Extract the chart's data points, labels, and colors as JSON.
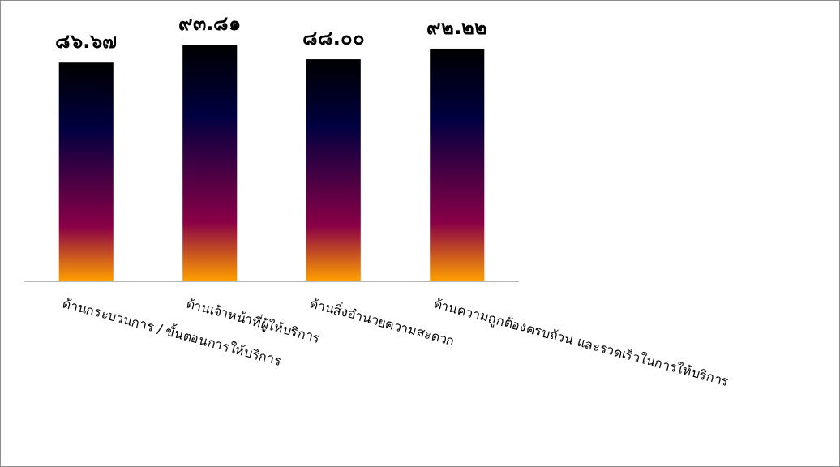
{
  "chart_data": {
    "type": "bar",
    "categories": [
      "ด้านกระบวนการ / ขั้นตอนการให้บริการ",
      "ด้านเจ้าหน้าที่ผู้ให้บริการ",
      "ด้านสิ่งอำนวยความสะดวก",
      "ด้านความถูกต้องครบถ้วน และรวดเร็วในการให้บริการ"
    ],
    "values": [
      86.67,
      93.81,
      88.0,
      92.22
    ],
    "value_labels": [
      "๘๖.๖๗",
      "๙๓.๘๑",
      "๘๘.๐๐",
      "๙๒.๒๒"
    ],
    "color": "#8a0046"
  }
}
